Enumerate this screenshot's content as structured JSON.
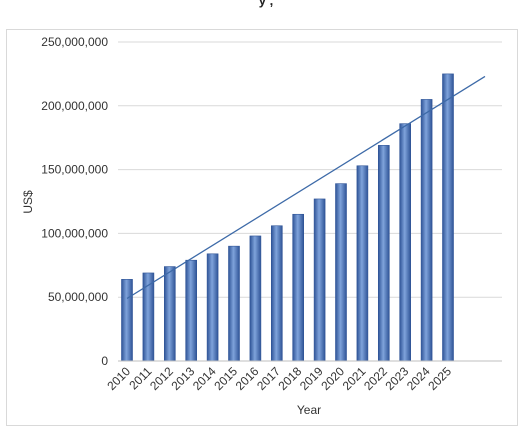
{
  "chart_data": {
    "type": "bar",
    "title_fragment": "y , ",
    "xlabel": "Year",
    "ylabel": "US$",
    "ylim": [
      0,
      250000000
    ],
    "yticks": [
      0,
      50000000,
      100000000,
      150000000,
      200000000,
      250000000
    ],
    "ytick_labels": [
      "0",
      "50,000,000",
      "100,000,000",
      "150,000,000",
      "200,000,000",
      "250,000,000"
    ],
    "categories": [
      "2010",
      "2011",
      "2012",
      "2013",
      "2014",
      "2015",
      "2016",
      "2017",
      "2018",
      "2019",
      "2020",
      "2021",
      "2022",
      "2023",
      "2024",
      "2025"
    ],
    "values": [
      64000000,
      69000000,
      74000000,
      79000000,
      84000000,
      90000000,
      98000000,
      106000000,
      115000000,
      127000000,
      139000000,
      153000000,
      169000000,
      186000000,
      205000000,
      225000000
    ],
    "trendline": {
      "type": "linear",
      "start_value": 49000000,
      "end_value": 223000000
    },
    "grid": true,
    "legend": "none",
    "colors": {
      "bar": "#4a72b5",
      "bar_dark": "#2f5497",
      "bar_light": "#7fa3db",
      "trend": "#3d6aa8",
      "grid": "#d9d9d9"
    }
  }
}
